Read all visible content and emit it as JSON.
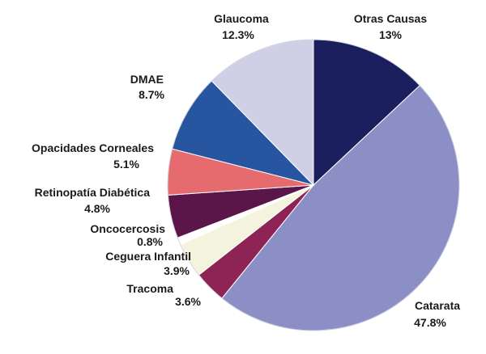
{
  "chart_data": {
    "type": "pie",
    "title": "",
    "start_angle_deg": -90,
    "direction": "clockwise",
    "slices": [
      {
        "label": "Otras Causas",
        "value_label": "13%",
        "value": 13.0,
        "color": "#1b1f5e"
      },
      {
        "label": "Catarata",
        "value_label": "47.8%",
        "value": 47.8,
        "color": "#8c8fc6"
      },
      {
        "label": "Tracoma",
        "value_label": "3.6%",
        "value": 3.6,
        "color": "#8e2456"
      },
      {
        "label": "Ceguera Infantil",
        "value_label": "3.9%",
        "value": 3.9,
        "color": "#f4f4de"
      },
      {
        "label": "Oncocercosis",
        "value_label": "0.8%",
        "value": 0.8,
        "color": "#ffffff"
      },
      {
        "label": "Retinopatía Diabética",
        "value_label": "4.8%",
        "value": 4.8,
        "color": "#5a1648"
      },
      {
        "label": "Opacidades Corneales",
        "value_label": "5.1%",
        "value": 5.1,
        "color": "#e56b6f"
      },
      {
        "label": "DMAE",
        "value_label": "8.7%",
        "value": 8.7,
        "color": "#2855a0"
      },
      {
        "label": "Glaucoma",
        "value_label": "12.3%",
        "value": 12.3,
        "color": "#cfcfe6"
      }
    ]
  }
}
